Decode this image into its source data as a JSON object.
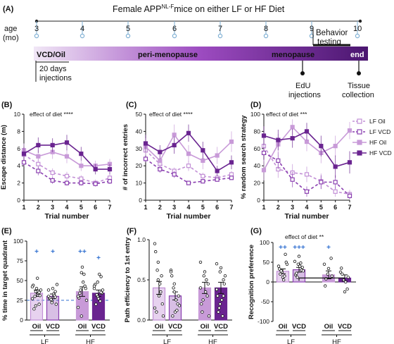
{
  "colors": {
    "lf": "#c28fd6",
    "lf_dark": "#8a3fb0",
    "hf_light": "#c89ad8",
    "hf_dark": "#6a2490",
    "plus": "#2f6fd0",
    "ref_line": "#2f6fd0",
    "timeline_start": "#f1e7f6",
    "timeline_mid": "#9c4bc0",
    "timeline_end": "#4b1670"
  },
  "panel_a": {
    "label": "(A)",
    "title_pre": "Female APP",
    "title_sup": "NL-F",
    "title_post": "mice on either LF or HF Diet",
    "age_label": "age",
    "age_unit": "(mo)",
    "ages": [
      "3",
      "4",
      "5",
      "6",
      "7",
      "8",
      "9",
      "10"
    ],
    "vcd_oil": "VCD/Oil",
    "peri": "peri-menopause",
    "meno": "menopause",
    "end": "end",
    "behavior_line1": "Behavior",
    "behavior_line2": "testing",
    "injections_line1": "20 days",
    "injections_line2": "injections",
    "edu_line1": "EdU",
    "edu_line2": "injections",
    "tissue_line1": "Tissue",
    "tissue_line2": "collection"
  },
  "legend": {
    "lf_oil": "LF Oil",
    "lf_vcd": "LF VCD",
    "hf_oil": "HF Oil",
    "hf_vcd": "HF VCD"
  },
  "panel_b": {
    "label": "(B)",
    "effect": "effect of diet ****",
    "ylabel": "Escape distance (m)",
    "xlabel": "Trial number",
    "yticks": [
      "0",
      "2",
      "4",
      "6",
      "8",
      "10"
    ],
    "xticks": [
      "1",
      "2",
      "3",
      "4",
      "5",
      "6",
      "7"
    ]
  },
  "panel_c": {
    "label": "(C)",
    "effect": "effect of diet ****",
    "ylabel": "# of incorrect entries",
    "xlabel": "Trial number",
    "yticks": [
      "0",
      "10",
      "20",
      "30",
      "40",
      "50"
    ],
    "xticks": [
      "1",
      "2",
      "3",
      "4",
      "5",
      "6",
      "7"
    ]
  },
  "panel_d": {
    "label": "(D)",
    "effect": "effect of diet ***",
    "ylabel": "% random search strategy",
    "xlabel": "Trial number",
    "yticks": [
      "0",
      "20",
      "40",
      "60",
      "80",
      "100"
    ],
    "xticks": [
      "1",
      "2",
      "3",
      "4",
      "5",
      "6",
      "7"
    ]
  },
  "panel_e": {
    "label": "(E)",
    "ylabel": "% time in target quadrant",
    "yticks": [
      "0",
      "25",
      "50",
      "75",
      "100"
    ],
    "groups": [
      "LF",
      "HF"
    ],
    "bar_labels": [
      "Oil",
      "VCD",
      "Oil",
      "VCD"
    ],
    "plus_marks": [
      "+",
      "+",
      "++",
      "+"
    ]
  },
  "panel_f": {
    "label": "(F)",
    "ylabel": "Path efficiency to 1st entry",
    "yticks": [
      "0.0",
      "0.5",
      "1.0"
    ],
    "groups": [
      "LF",
      "HF"
    ],
    "bar_labels": [
      "Oil",
      "VCD",
      "Oil",
      "VCD"
    ]
  },
  "panel_g": {
    "label": "(G)",
    "effect": "effect of diet **",
    "ylabel": "Recognition preference",
    "yticks": [
      "-100",
      "-50",
      "0",
      "50",
      "100"
    ],
    "groups": [
      "LF",
      "HF"
    ],
    "bar_labels": [
      "Oil",
      "VCD",
      "Oil",
      "VCD"
    ],
    "plus_marks": [
      "++",
      "+++",
      "+",
      ""
    ]
  },
  "chart_data": [
    {
      "type": "line",
      "panel": "B",
      "title": "",
      "xlabel": "Trial number",
      "ylabel": "Escape distance (m)",
      "annotation": "effect of diet ****",
      "x": [
        1,
        2,
        3,
        4,
        5,
        6,
        7
      ],
      "xlim": [
        1,
        7
      ],
      "ylim": [
        0,
        10
      ],
      "series": [
        {
          "name": "LF Oil",
          "values": [
            5.3,
            4.2,
            3.2,
            2.8,
            2.5,
            2.0,
            2.6
          ],
          "err": [
            0.6,
            0.6,
            0.5,
            0.5,
            0.4,
            0.4,
            0.4
          ]
        },
        {
          "name": "LF VCD",
          "values": [
            4.4,
            3.4,
            2.3,
            2.0,
            2.0,
            1.9,
            2.2
          ],
          "err": [
            0.5,
            0.5,
            0.4,
            0.3,
            0.3,
            0.3,
            0.3
          ]
        },
        {
          "name": "HF Oil",
          "values": [
            5.8,
            5.1,
            5.6,
            5.1,
            4.0,
            4.0,
            4.2
          ],
          "err": [
            0.8,
            0.7,
            0.8,
            0.8,
            0.6,
            0.6,
            0.6
          ]
        },
        {
          "name": "HF VCD",
          "values": [
            5.4,
            6.4,
            6.4,
            6.7,
            5.4,
            3.6,
            3.6
          ],
          "err": [
            0.8,
            0.9,
            0.8,
            0.9,
            0.8,
            0.6,
            0.6
          ]
        }
      ]
    },
    {
      "type": "line",
      "panel": "C",
      "title": "",
      "xlabel": "Trial number",
      "ylabel": "# of incorrect entries",
      "annotation": "effect of diet ****",
      "x": [
        1,
        2,
        3,
        4,
        5,
        6,
        7
      ],
      "xlim": [
        1,
        7
      ],
      "ylim": [
        0,
        50
      ],
      "series": [
        {
          "name": "LF Oil",
          "values": [
            29,
            21,
            17,
            20,
            14,
            13,
            15
          ],
          "err": [
            3,
            3,
            2,
            3,
            2,
            2,
            2
          ]
        },
        {
          "name": "LF VCD",
          "values": [
            24,
            18,
            15,
            10,
            11,
            12,
            13
          ],
          "err": [
            2,
            2,
            2,
            1,
            1,
            1,
            1
          ]
        },
        {
          "name": "HF Oil",
          "values": [
            31,
            23,
            38,
            27,
            23,
            26,
            34
          ],
          "err": [
            5,
            5,
            6,
            5,
            5,
            5,
            6
          ]
        },
        {
          "name": "HF VCD",
          "values": [
            33,
            28,
            32,
            39,
            29,
            17,
            22
          ],
          "err": [
            5,
            4,
            5,
            5,
            5,
            3,
            4
          ]
        }
      ]
    },
    {
      "type": "line",
      "panel": "D",
      "title": "",
      "xlabel": "Trial number",
      "ylabel": "% random search strategy",
      "annotation": "effect of diet ***",
      "x": [
        1,
        2,
        3,
        4,
        5,
        6,
        7
      ],
      "xlim": [
        1,
        7
      ],
      "ylim": [
        0,
        100
      ],
      "series": [
        {
          "name": "LF Oil",
          "values": [
            63,
            36,
            32,
            30,
            22,
            10,
            7
          ],
          "err": [
            10,
            10,
            10,
            9,
            9,
            6,
            5
          ]
        },
        {
          "name": "LF VCD",
          "values": [
            55,
            46,
            24,
            10,
            21,
            21,
            5
          ],
          "err": [
            10,
            10,
            9,
            6,
            8,
            8,
            4
          ]
        },
        {
          "name": "HF Oil",
          "values": [
            35,
            65,
            85,
            68,
            55,
            63,
            81
          ],
          "err": [
            12,
            12,
            9,
            11,
            12,
            12,
            10
          ]
        },
        {
          "name": "HF VCD",
          "values": [
            75,
            70,
            72,
            80,
            63,
            39,
            44
          ],
          "err": [
            11,
            12,
            11,
            10,
            12,
            13,
            13
          ]
        }
      ]
    },
    {
      "type": "bar",
      "panel": "E",
      "title": "",
      "xlabel": "",
      "ylabel": "% time in target quadrant",
      "categories": [
        "LF Oil",
        "LF VCD",
        "HF Oil",
        "HF VCD"
      ],
      "values": [
        34,
        30,
        36,
        34
      ],
      "err": [
        4,
        3,
        6,
        4
      ],
      "ylim": [
        0,
        100
      ],
      "reference_line": 25,
      "points": [
        [
          27,
          36,
          20,
          44,
          40,
          31,
          14,
          53,
          38,
          30,
          34,
          42,
          18,
          35
        ],
        [
          30,
          24,
          36,
          27,
          40,
          20,
          28,
          33,
          45,
          26,
          31,
          38,
          22,
          29
        ],
        [
          16,
          60,
          43,
          28,
          67,
          40,
          34,
          48,
          25,
          38,
          58,
          30,
          5
        ],
        [
          40,
          30,
          55,
          45,
          27,
          34,
          20,
          58,
          38,
          32,
          24,
          43,
          48,
          35
        ]
      ]
    },
    {
      "type": "bar",
      "panel": "F",
      "title": "",
      "xlabel": "",
      "ylabel": "Path efficiency to 1st entry",
      "categories": [
        "LF Oil",
        "LF VCD",
        "HF Oil",
        "HF VCD"
      ],
      "values": [
        0.4,
        0.3,
        0.4,
        0.4
      ],
      "err": [
        0.08,
        0.05,
        0.07,
        0.07
      ],
      "ylim": [
        0,
        1.0
      ],
      "points": [
        [
          0.95,
          0.72,
          0.55,
          0.85,
          0.3,
          0.2,
          0.1,
          0.45,
          0.05,
          0.62,
          0.35,
          0.15,
          0.5
        ],
        [
          0.62,
          0.45,
          0.2,
          0.55,
          0.1,
          0.3,
          0.05,
          0.25,
          0.18,
          0.4,
          0.12,
          0.6,
          0.35
        ],
        [
          0.72,
          0.55,
          0.3,
          0.2,
          0.6,
          0.45,
          0.1,
          0.35,
          0.05,
          0.25,
          0.5,
          0.4
        ],
        [
          0.7,
          0.2,
          0.5,
          0.3,
          0.65,
          0.45,
          0.1,
          0.25,
          0.55,
          0.15,
          0.05,
          0.38,
          0.6,
          0.3
        ]
      ]
    },
    {
      "type": "bar",
      "panel": "G",
      "title": "",
      "xlabel": "",
      "ylabel": "Recognition preference",
      "annotation": "effect of diet **",
      "categories": [
        "LF Oil",
        "LF VCD",
        "HF Oil",
        "HF VCD"
      ],
      "values": [
        27,
        31,
        18,
        10
      ],
      "err": [
        6,
        6,
        10,
        8
      ],
      "ylim": [
        -100,
        100
      ],
      "points": [
        [
          40,
          25,
          70,
          33,
          12,
          50,
          20,
          5,
          45,
          28,
          15
        ],
        [
          52,
          45,
          30,
          18,
          65,
          37,
          22,
          40,
          28,
          12,
          48
        ],
        [
          45,
          20,
          60,
          -10,
          34,
          15,
          8
        ],
        [
          25,
          5,
          -18,
          35,
          -25,
          12,
          20,
          0
        ]
      ]
    }
  ]
}
